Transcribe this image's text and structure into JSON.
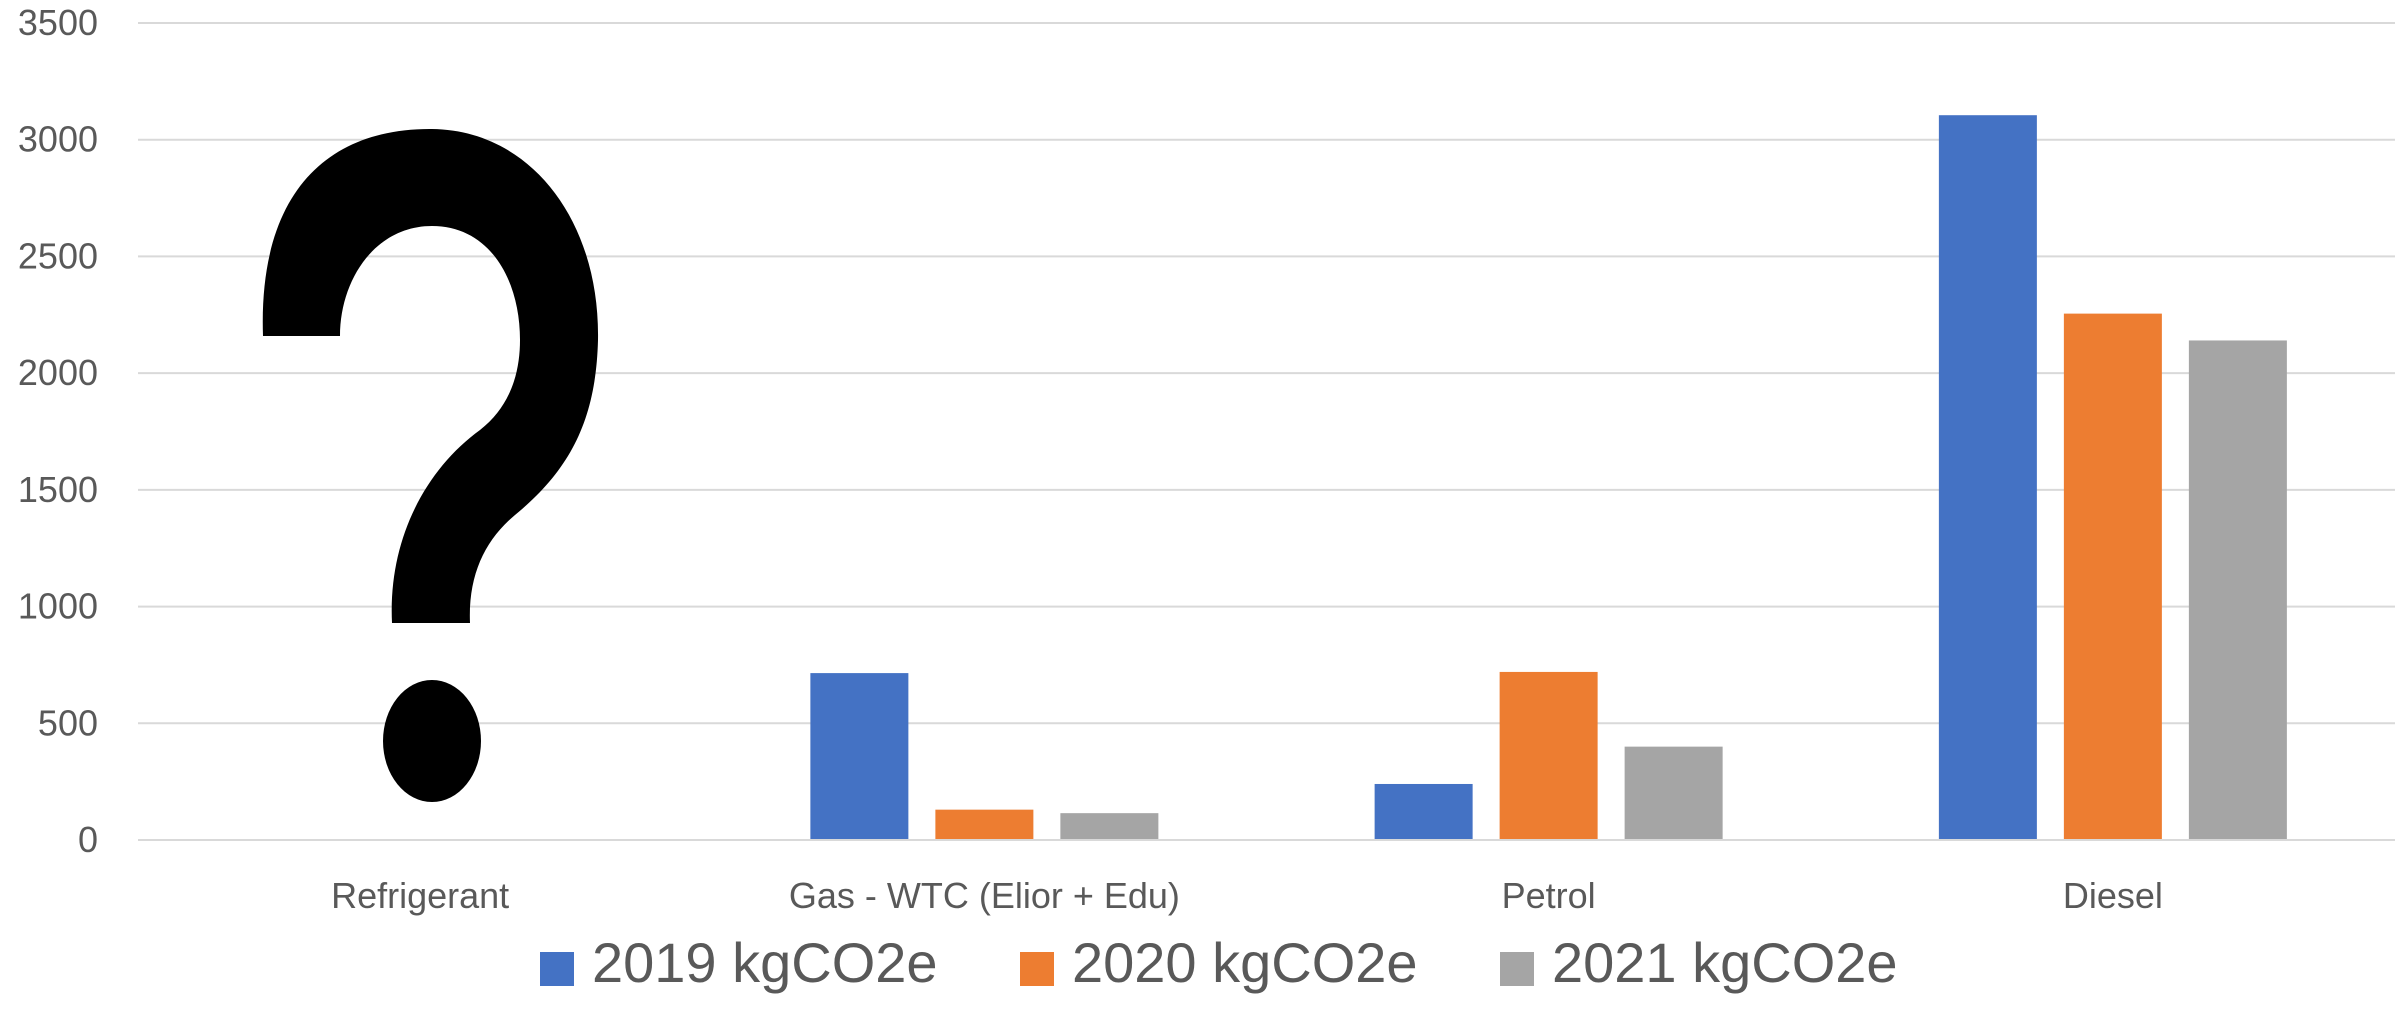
{
  "chart_data": {
    "type": "bar",
    "title": "",
    "xlabel": "",
    "ylabel": "",
    "categories": [
      "Refrigerant",
      "Gas - WTC (Elior + Edu)",
      "Petrol",
      "Diesel"
    ],
    "series": [
      {
        "name": "2019 kgCO2e",
        "color": "#4472C4",
        "values": [
          null,
          715,
          240,
          3105
        ]
      },
      {
        "name": "2020 kgCO2e",
        "color": "#ED7D31",
        "values": [
          null,
          130,
          720,
          2255
        ]
      },
      {
        "name": "2021 kgCO2e",
        "color": "#A5A5A5",
        "values": [
          null,
          115,
          400,
          2140
        ]
      }
    ],
    "ylim": [
      0,
      3500
    ],
    "yticks": [
      0,
      500,
      1000,
      1500,
      2000,
      2500,
      3000,
      3500
    ],
    "grid": true,
    "legend_position": "bottom",
    "annotation": {
      "icon": "question-mark-icon",
      "category": "Refrigerant"
    }
  }
}
